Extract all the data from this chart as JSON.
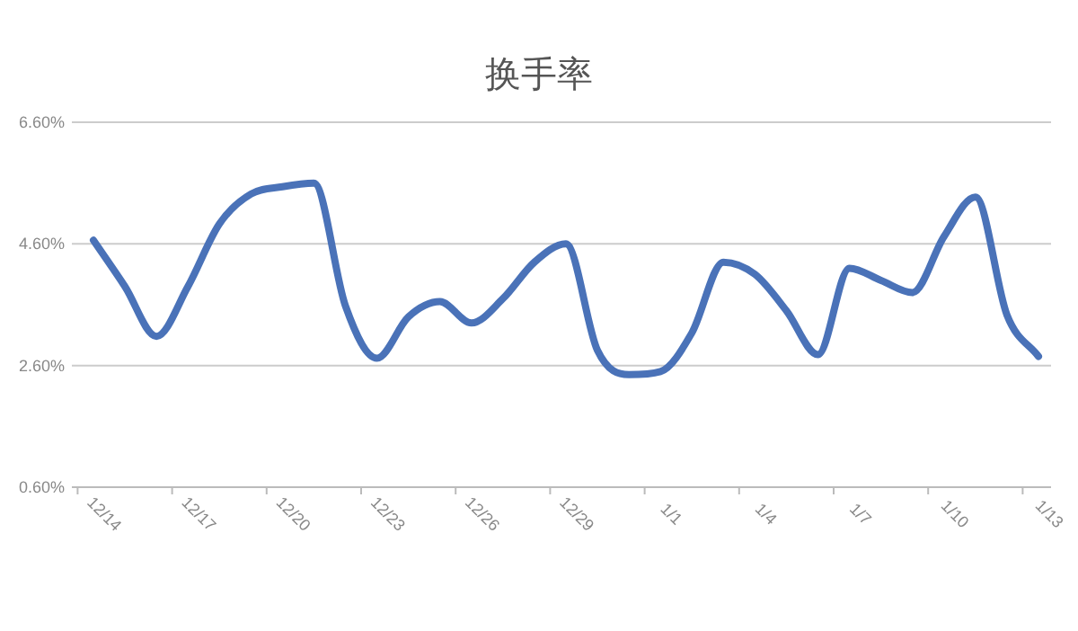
{
  "chart_data": {
    "type": "line",
    "title": "换手率",
    "categories": [
      "12/14",
      null,
      null,
      "12/17",
      null,
      null,
      "12/20",
      null,
      null,
      "12/23",
      null,
      null,
      "12/26",
      null,
      null,
      "12/29",
      null,
      null,
      "1/1",
      null,
      null,
      "1/4",
      null,
      null,
      "1/7",
      null,
      null,
      "1/10",
      null,
      null,
      "1/13"
    ],
    "series": [
      {
        "color": "#4a72b8",
        "values": [
          4.66,
          3.9,
          3.08,
          3.9,
          4.93,
          5.42,
          5.54,
          5.6,
          3.58,
          2.72,
          3.4,
          3.65,
          3.3,
          3.7,
          4.3,
          4.6,
          2.85,
          2.45,
          2.5,
          3.14,
          4.3,
          4.1,
          3.5,
          2.78,
          4.2,
          4.0,
          3.8,
          4.72,
          5.37,
          3.43,
          2.75
        ]
      }
    ],
    "ylim": [
      0.6,
      6.6
    ],
    "yticks": [
      {
        "value": 0.6,
        "label": "0.60%"
      },
      {
        "value": 2.6,
        "label": "2.60%"
      },
      {
        "value": 4.6,
        "label": "4.60%"
      },
      {
        "value": 6.6,
        "label": "6.60%"
      }
    ],
    "grid": "y",
    "marker": "none",
    "line_style": "solid"
  }
}
